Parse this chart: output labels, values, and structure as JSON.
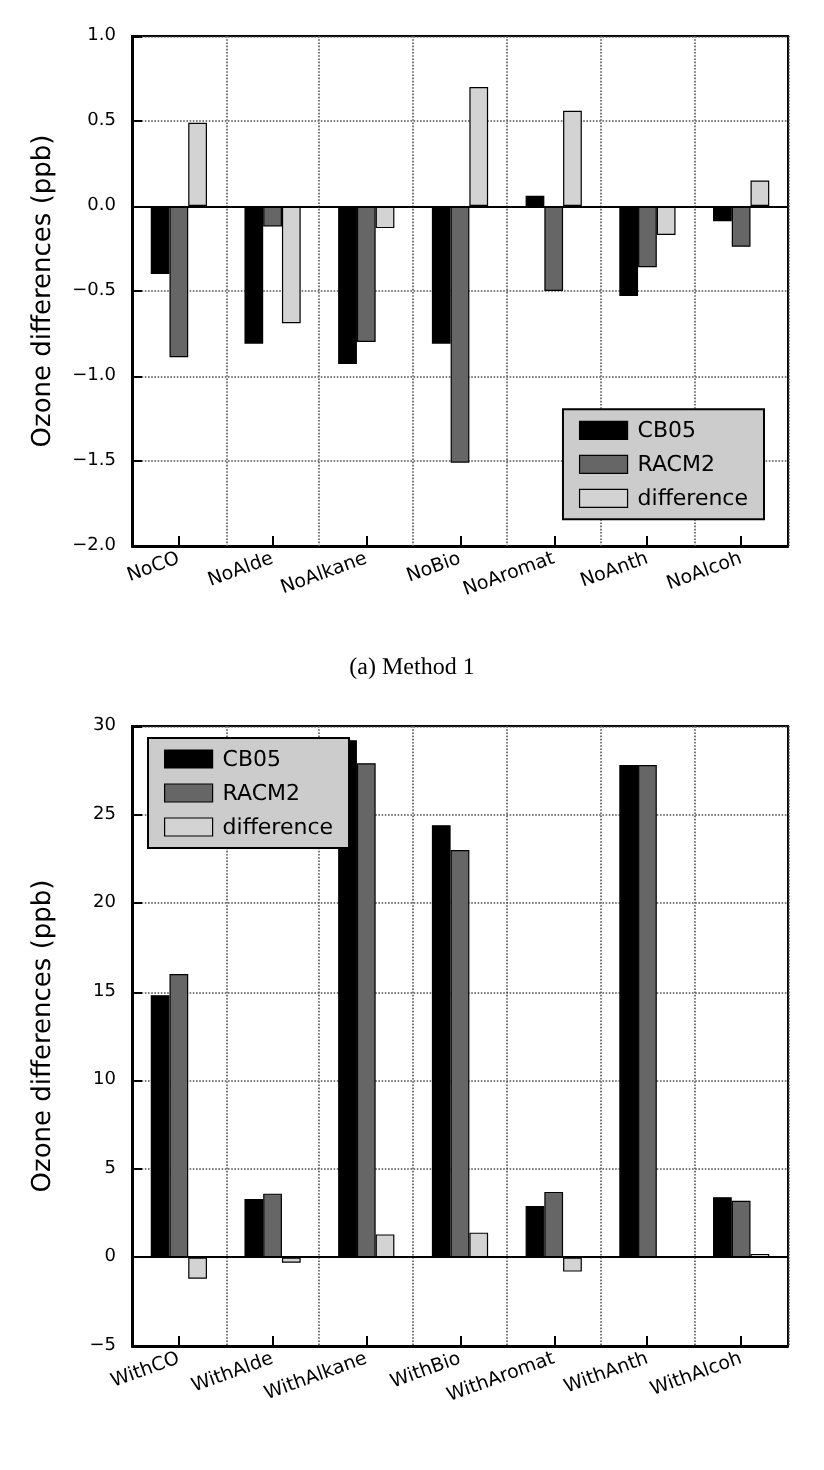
{
  "chart_data": [
    {
      "type": "bar",
      "ylabel": "Ozone differences (ppb)",
      "annotations": [
        "(a) Method 1"
      ],
      "categories": [
        "NoCO",
        "NoAlde",
        "NoAlkane",
        "NoBio",
        "NoAromat",
        "NoAnth",
        "NoAlcoh"
      ],
      "series": [
        {
          "name": "CB05",
          "color": "#000000",
          "values": [
            -0.4,
            -0.81,
            -0.93,
            -0.81,
            0.06,
            -0.53,
            -0.09
          ]
        },
        {
          "name": "RACM2",
          "color": "#666666",
          "values": [
            -0.89,
            -0.12,
            -0.8,
            -1.51,
            -0.5,
            -0.36,
            -0.24
          ]
        },
        {
          "name": "difference",
          "color": "#d3d3d3",
          "values": [
            0.49,
            -0.69,
            -0.13,
            0.7,
            0.56,
            -0.17,
            0.15
          ]
        }
      ],
      "ylim": [
        -2,
        1
      ],
      "yticks": [
        {
          "value": -2,
          "label": "−2.0"
        },
        {
          "value": -1.5,
          "label": "−1.5"
        },
        {
          "value": -1,
          "label": "−1.0"
        },
        {
          "value": -0.5,
          "label": "−0.5"
        },
        {
          "value": 0,
          "label": "0.0"
        },
        {
          "value": 0.5,
          "label": "0.5"
        },
        {
          "value": 1,
          "label": "1.0"
        }
      ],
      "ref_lines": [
        {
          "axis": "y",
          "value": 0,
          "color": "#000000"
        }
      ],
      "grid": true,
      "legend": "right"
    },
    {
      "type": "bar",
      "ylabel": "Ozone differences (ppb)",
      "categories": [
        "WithCO",
        "WithAlde",
        "WithAlkane",
        "WithBio",
        "WithAromat",
        "WithAnth",
        "WithAlcoh"
      ],
      "series": [
        {
          "name": "CB05",
          "color": "#000000",
          "values": [
            14.8,
            3.3,
            29.2,
            24.4,
            2.9,
            27.8,
            3.4
          ]
        },
        {
          "name": "RACM2",
          "color": "#666666",
          "values": [
            16.0,
            3.6,
            27.9,
            23.0,
            3.7,
            27.8,
            3.2
          ]
        },
        {
          "name": "difference",
          "color": "#d3d3d3",
          "values": [
            -1.2,
            -0.3,
            1.3,
            1.4,
            -0.8,
            0.0,
            0.2
          ]
        }
      ],
      "ylim": [
        -5,
        30
      ],
      "yticks": [
        {
          "value": -5,
          "label": "−5"
        },
        0,
        5,
        10,
        15,
        20,
        25,
        30
      ],
      "ref_lines": [
        {
          "axis": "y",
          "value": 0,
          "color": "#000000"
        }
      ],
      "grid": true,
      "legend": "top left"
    }
  ]
}
